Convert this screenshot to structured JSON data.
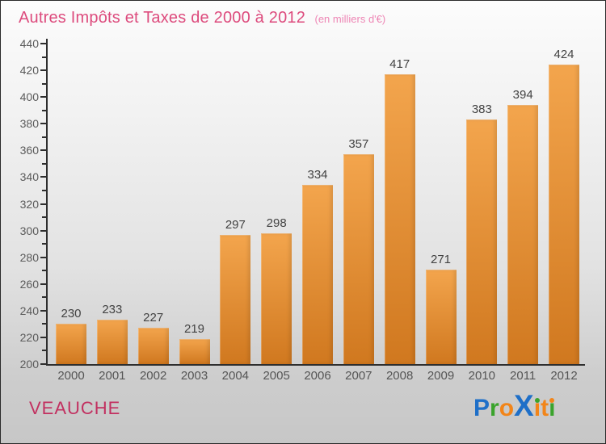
{
  "header": {
    "title": "Autres Impôts et Taxes de 2000 à 2012",
    "subtitle": "(en milliers d'€)"
  },
  "footer": {
    "place": "VEAUCHE",
    "logo_text": "Proxiti",
    "logo_letters": [
      {
        "ch": "P",
        "color": "#1e6fc8"
      },
      {
        "ch": "r",
        "color": "#3aa32c"
      },
      {
        "ch": "o",
        "color": "#f28519"
      },
      {
        "ch": "X",
        "color": "#1e6fc8",
        "big": true
      },
      {
        "ch": "ı",
        "color": "#f28519",
        "dot": "#3aa32c"
      },
      {
        "ch": "t",
        "color": "#f28519"
      },
      {
        "ch": "ı",
        "color": "#3aa32c",
        "dot": "#f28519"
      }
    ]
  },
  "colors": {
    "title": "#dd4b7d",
    "subtitle": "#ee86b5",
    "place": "#c23060",
    "bar_top": "#f3a54d",
    "bar_bottom": "#d0781f",
    "axis": "#2e2e2e",
    "tick_label": "#5a5a5a",
    "value_label": "#424242",
    "x_label": "#555555"
  },
  "chart_data": {
    "type": "bar",
    "title": "Autres Impôts et Taxes de 2000 à 2012",
    "subtitle": "(en milliers d'€)",
    "categories": [
      "2000",
      "2001",
      "2002",
      "2003",
      "2004",
      "2005",
      "2006",
      "2007",
      "2008",
      "2009",
      "2010",
      "2011",
      "2012"
    ],
    "values": [
      230,
      233,
      227,
      219,
      297,
      298,
      334,
      357,
      417,
      271,
      383,
      394,
      424
    ],
    "xlabel": "",
    "ylabel": "",
    "ylim": [
      200,
      440
    ],
    "ytick_step": 20,
    "yminor_step": 10,
    "grid": false,
    "legend": false
  }
}
